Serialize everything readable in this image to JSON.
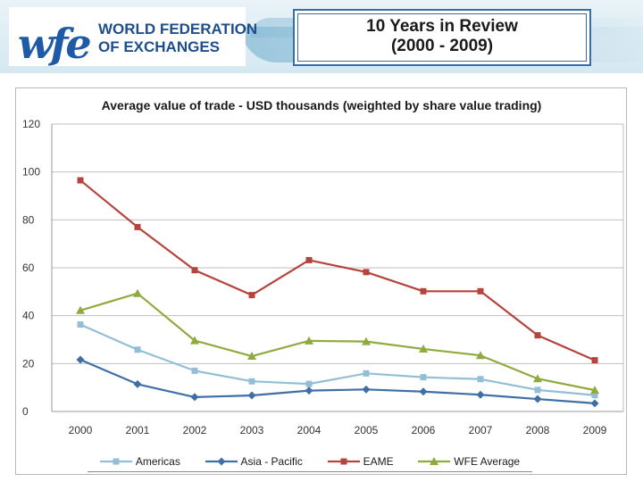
{
  "header": {
    "logo_mark": "wfe",
    "org_line1": "WORLD FEDERATION",
    "org_line2": "OF EXCHANGES",
    "title_line1": "10 Years in Review",
    "title_line2": "(2000 - 2009)"
  },
  "chart_data": {
    "type": "line",
    "title": "Average value of trade - USD thousands (weighted by share value trading)",
    "xlabel": "",
    "ylabel": "",
    "ylim": [
      0,
      120
    ],
    "yticks": [
      0,
      20,
      40,
      60,
      80,
      100,
      120
    ],
    "categories": [
      "2000",
      "2001",
      "2002",
      "2003",
      "2004",
      "2005",
      "2006",
      "2007",
      "2008",
      "2009"
    ],
    "grid": true,
    "legend_position": "bottom",
    "series": [
      {
        "name": "Americas",
        "color": "#93bfd6",
        "marker": "square",
        "values": [
          36.3,
          25.8,
          17.0,
          12.6,
          11.5,
          15.9,
          14.3,
          13.5,
          9.0,
          6.8
        ]
      },
      {
        "name": "Asia - Pacific",
        "color": "#3f6fa4",
        "marker": "diamond",
        "values": [
          21.6,
          11.4,
          6.0,
          6.7,
          8.7,
          9.2,
          8.3,
          7.0,
          5.2,
          3.4
        ]
      },
      {
        "name": "EAME",
        "color": "#b5443d",
        "marker": "square",
        "values": [
          96.5,
          77.0,
          59.0,
          48.6,
          63.2,
          58.2,
          50.2,
          50.2,
          31.8,
          21.4
        ]
      },
      {
        "name": "WFE Average",
        "color": "#8faa3e",
        "marker": "triangle",
        "values": [
          42.2,
          49.3,
          29.6,
          23.1,
          29.5,
          29.2,
          26.1,
          23.4,
          13.7,
          8.9
        ]
      }
    ]
  }
}
